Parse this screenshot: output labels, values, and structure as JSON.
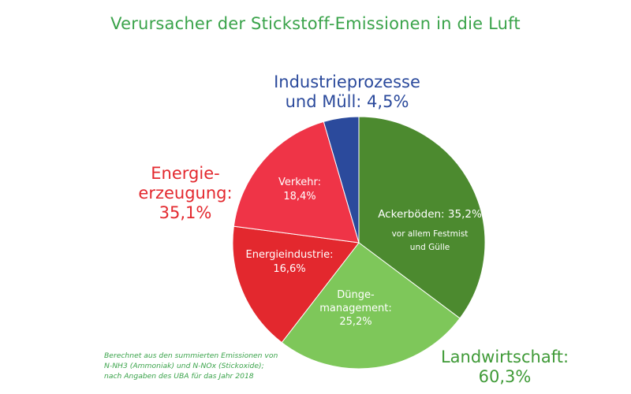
{
  "title": "Verursacher der Stickstoff-Emissionen in die Luft",
  "groups": {
    "industrie": {
      "line1": "Industrieprozesse",
      "line2": "und Müll: 4,5%"
    },
    "energie": {
      "line1": "Energie-",
      "line2": "erzeugung:",
      "line3": "35,1%"
    },
    "land": {
      "line1": "Landwirtschaft:",
      "line2": "60,3%"
    }
  },
  "note": {
    "line1": "Berechnet aus den summierten Emissionen von",
    "line2": "N-NH3 (Ammoniak) und N-NOx (Stickoxide);",
    "line3": "nach Angaben des UBA für das Jahr 2018"
  },
  "chart_data": {
    "type": "pie",
    "slices": [
      {
        "label": "Ackerböden: 35,2%",
        "sublabel_1": "vor allem Festmist",
        "sublabel_2": "und Gülle",
        "value": 35.2,
        "color": "#4c8a2f"
      },
      {
        "label": "Dünge-",
        "label_2": "management:",
        "label_3": "25,2%",
        "value": 25.2,
        "color": "#7ec75a"
      },
      {
        "label": "Energieindustrie:",
        "label_2": "16,6%",
        "value": 16.6,
        "color": "#e3282e"
      },
      {
        "label": "Verkehr:",
        "label_2": "18,4%",
        "value": 18.4,
        "color": "#ef3447"
      },
      {
        "label": "",
        "value": 4.5,
        "color": "#2b4a9c"
      }
    ]
  }
}
